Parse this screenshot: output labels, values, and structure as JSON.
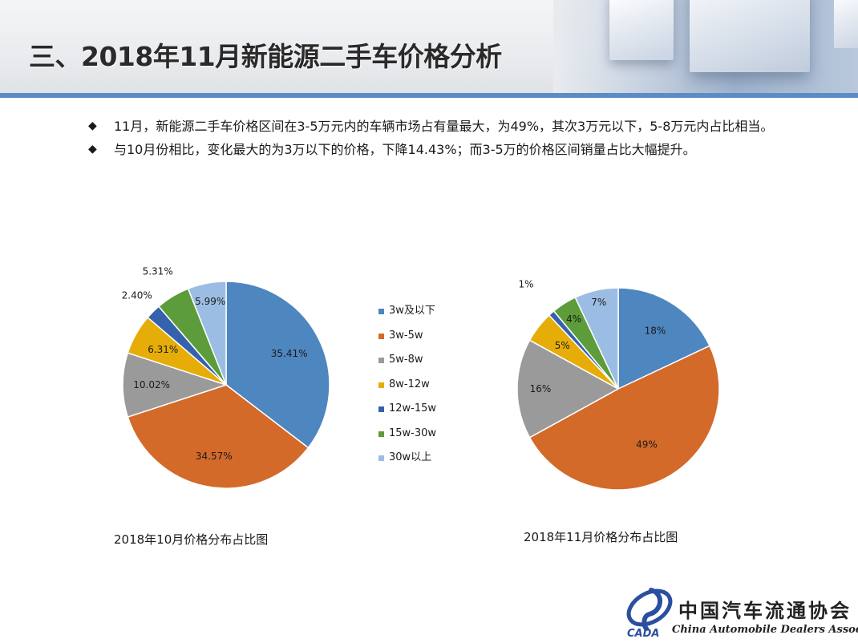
{
  "slide": {
    "title": "三、2018年11月新能源二手车价格分析",
    "bullets": [
      {
        "marker": "◆",
        "text": "11月，新能源二手车价格区间在3-5万元内的车辆市场占有量最大，为49%，其次3万元以下，5-8万元内占比相当。"
      },
      {
        "marker": "◆",
        "text": "与10月份相比，变化最大的为3万以下的价格，下降14.43%；而3-5万的价格区间销量占比大幅提升。"
      }
    ],
    "logo": {
      "cn": "中国汽车流通协会",
      "en": "China Automobile Dealers Association",
      "mark": "CADA"
    }
  },
  "legend": {
    "items": [
      {
        "label": "3w及以下",
        "color": "#4e86c0"
      },
      {
        "label": "3w-5w",
        "color": "#d36a2a"
      },
      {
        "label": "5w-8w",
        "color": "#9a9a9a"
      },
      {
        "label": "8w-12w",
        "color": "#e6ad08"
      },
      {
        "label": "12w-15w",
        "color": "#3561ad"
      },
      {
        "label": "15w-30w",
        "color": "#5c9c3a"
      },
      {
        "label": "30w以上",
        "color": "#9bbde3"
      }
    ]
  },
  "chart_data": [
    {
      "type": "pie",
      "title": "2018年10月价格分布占比图",
      "categories": [
        "3w及以下",
        "3w-5w",
        "5w-8w",
        "8w-12w",
        "12w-15w",
        "15w-30w",
        "30w以上"
      ],
      "values": [
        35.41,
        34.57,
        10.02,
        6.31,
        2.4,
        5.31,
        5.99
      ],
      "labels": [
        "35.41%",
        "34.57%",
        "10.02%",
        "6.31%",
        "2.40%",
        "5.31%",
        "5.99%"
      ],
      "colors": [
        "#4e86c0",
        "#d36a2a",
        "#9a9a9a",
        "#e6ad08",
        "#3561ad",
        "#5c9c3a",
        "#9bbde3"
      ],
      "legend": "right"
    },
    {
      "type": "pie",
      "title": "2018年11月价格分布占比图",
      "categories": [
        "3w及以下",
        "3w-5w",
        "5w-8w",
        "8w-12w",
        "12w-15w",
        "15w-30w",
        "30w以上"
      ],
      "values": [
        18,
        49,
        16,
        5,
        1,
        4,
        7
      ],
      "labels": [
        "18%",
        "49%",
        "16%",
        "5%",
        "1%",
        "4%",
        "7%"
      ],
      "colors": [
        "#4e86c0",
        "#d36a2a",
        "#9a9a9a",
        "#e6ad08",
        "#3561ad",
        "#5c9c3a",
        "#9bbde3"
      ],
      "legend": "none"
    }
  ]
}
